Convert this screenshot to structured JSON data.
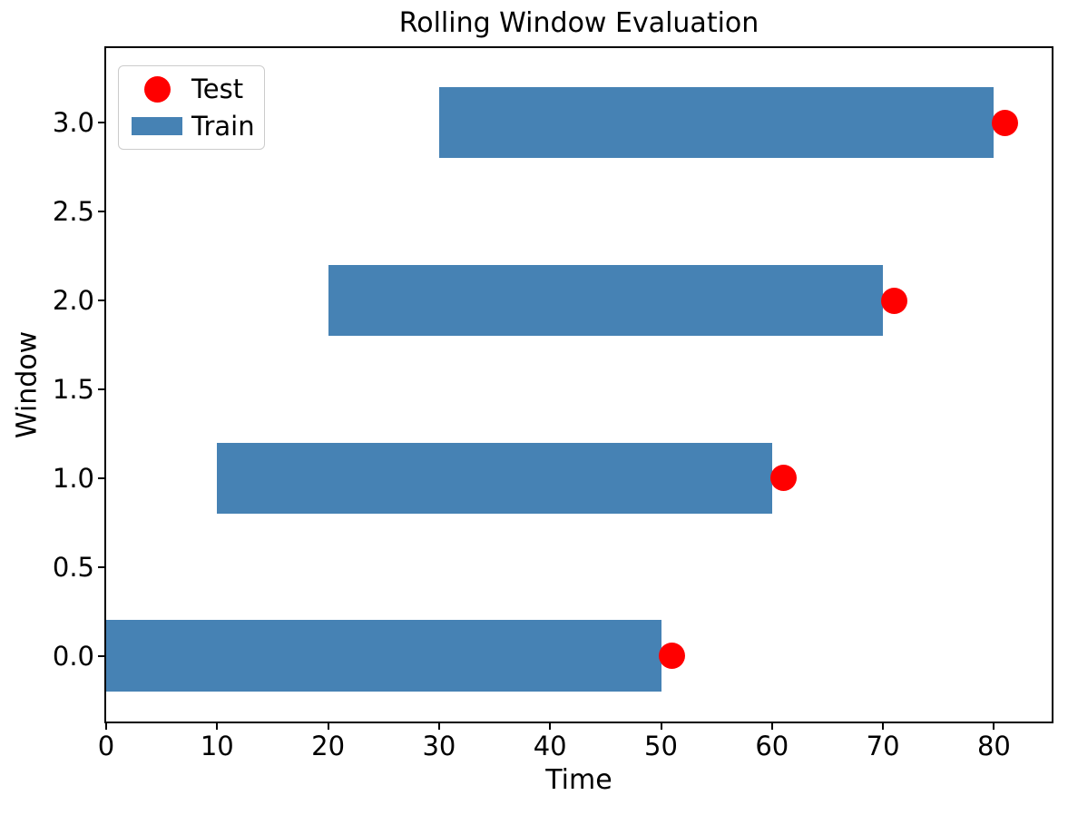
{
  "chart_data": {
    "type": "barh+scatter",
    "title": "Rolling Window Evaluation",
    "xlabel": "Time",
    "ylabel": "Window",
    "xlim": [
      0,
      85.2
    ],
    "ylim": [
      -0.37,
      3.42
    ],
    "xticks": [
      0,
      10,
      20,
      30,
      40,
      50,
      60,
      70,
      80
    ],
    "xtick_labels": [
      "0",
      "10",
      "20",
      "30",
      "40",
      "50",
      "60",
      "70",
      "80"
    ],
    "yticks": [
      0,
      0.5,
      1,
      1.5,
      2,
      2.5,
      3
    ],
    "ytick_labels": [
      "0.0",
      "0.5",
      "1.0",
      "1.5",
      "2.0",
      "2.5",
      "3.0"
    ],
    "grid": false,
    "legend": {
      "position": "upper left",
      "entries": [
        "Test",
        "Train"
      ]
    },
    "series": [
      {
        "name": "Train",
        "type": "barh",
        "color": "#4682b4",
        "bar_height": 0.4,
        "windows": [
          0,
          1,
          2,
          3
        ],
        "train_start": [
          0,
          10,
          20,
          30
        ],
        "train_end": [
          50,
          60,
          70,
          80
        ]
      },
      {
        "name": "Test",
        "type": "scatter",
        "color": "#ff0000",
        "marker": "circle",
        "marker_diameter_px": 29,
        "x": [
          51,
          61,
          71,
          81
        ],
        "y": [
          0,
          1,
          2,
          3
        ]
      }
    ],
    "colors": {
      "train_bar": "#4682b4",
      "test_dot": "#ff0000",
      "axis": "#000000",
      "legend_border": "#cccccc"
    }
  }
}
